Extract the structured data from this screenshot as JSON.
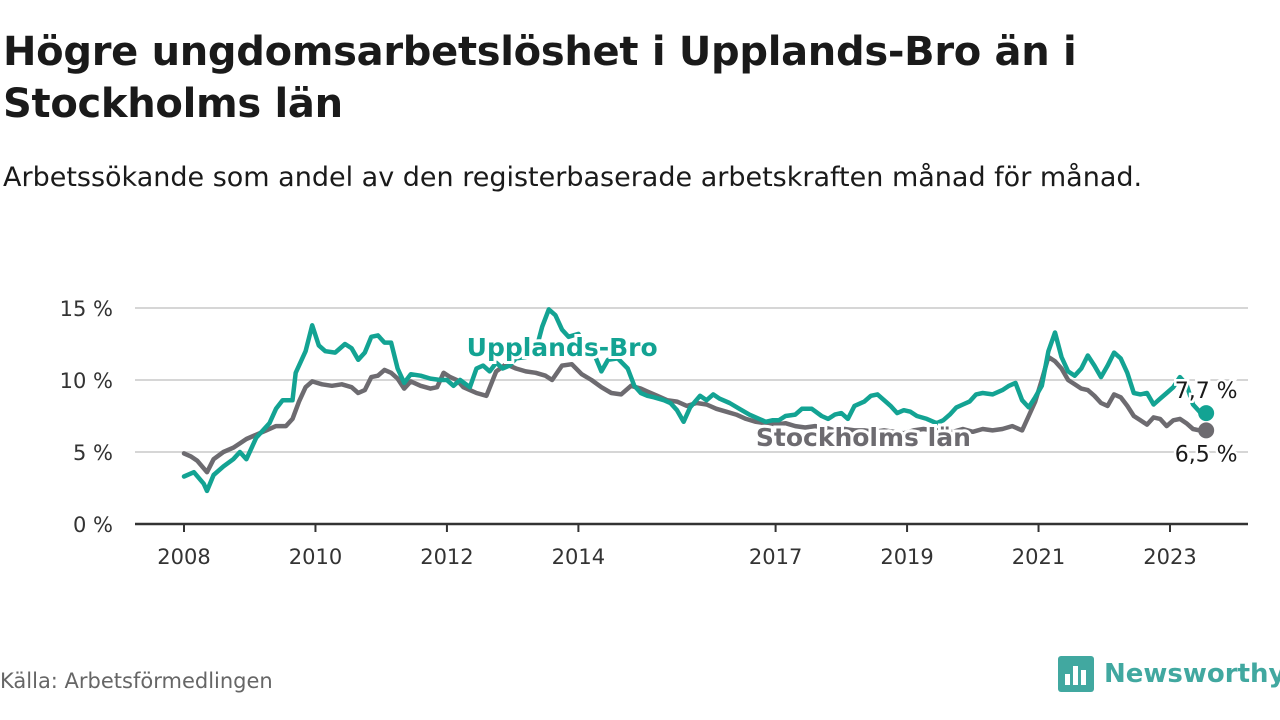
{
  "title": "Högre ungdomsarbetslöshet i Upplands-Bro än i Stockholms län",
  "subtitle": "Arbetssökande som andel av den registerbaserade arbetskraften månad för månad.",
  "source": "Källa: Arbetsförmedlingen",
  "brand": {
    "name": "Newsworthy",
    "icon": "bar-chart-logo-icon",
    "color": "#41a8a0"
  },
  "colors": {
    "upplands": "#13a393",
    "stockholm": "#6d6b70",
    "grid": "#d6d6d6",
    "axis": "#333333"
  },
  "chart_data": {
    "type": "line",
    "ylim": [
      0,
      15
    ],
    "yticks": [
      0,
      5,
      10,
      15
    ],
    "ytick_labels": [
      "0 %",
      "5 %",
      "10 %",
      "15 %"
    ],
    "xlim": [
      2008.0,
      2023.6
    ],
    "xticks": [
      2008,
      2010,
      2012,
      2014,
      2017,
      2019,
      2021,
      2023
    ],
    "xtick_labels": [
      "2008",
      "2010",
      "2012",
      "2014",
      "2017",
      "2019",
      "2021",
      "2023"
    ],
    "series": [
      {
        "name": "Upplands-Bro",
        "label": "Upplands-Bro",
        "end_label": "7,7 %",
        "points": [
          [
            2008.0,
            3.3
          ],
          [
            2008.15,
            3.6
          ],
          [
            2008.3,
            2.8
          ],
          [
            2008.35,
            2.3
          ],
          [
            2008.45,
            3.4
          ],
          [
            2008.6,
            4.0
          ],
          [
            2008.75,
            4.5
          ],
          [
            2008.85,
            5.0
          ],
          [
            2008.95,
            4.5
          ],
          [
            2009.1,
            6.0
          ],
          [
            2009.3,
            7.0
          ],
          [
            2009.4,
            8.0
          ],
          [
            2009.5,
            8.6
          ],
          [
            2009.65,
            8.6
          ],
          [
            2009.7,
            10.5
          ],
          [
            2009.85,
            12.0
          ],
          [
            2009.95,
            13.8
          ],
          [
            2010.05,
            12.4
          ],
          [
            2010.15,
            12.0
          ],
          [
            2010.3,
            11.9
          ],
          [
            2010.45,
            12.5
          ],
          [
            2010.55,
            12.2
          ],
          [
            2010.65,
            11.4
          ],
          [
            2010.75,
            11.9
          ],
          [
            2010.85,
            13.0
          ],
          [
            2010.95,
            13.1
          ],
          [
            2011.05,
            12.6
          ],
          [
            2011.15,
            12.6
          ],
          [
            2011.25,
            10.8
          ],
          [
            2011.35,
            9.8
          ],
          [
            2011.45,
            10.4
          ],
          [
            2011.6,
            10.3
          ],
          [
            2011.75,
            10.1
          ],
          [
            2011.9,
            10.0
          ],
          [
            2012.0,
            10.0
          ],
          [
            2012.1,
            9.6
          ],
          [
            2012.2,
            10.0
          ],
          [
            2012.35,
            9.5
          ],
          [
            2012.45,
            10.8
          ],
          [
            2012.55,
            11.0
          ],
          [
            2012.65,
            10.6
          ],
          [
            2012.75,
            11.2
          ],
          [
            2012.85,
            10.8
          ],
          [
            2012.95,
            11.0
          ],
          [
            2013.05,
            11.5
          ],
          [
            2013.2,
            11.6
          ],
          [
            2013.35,
            12.0
          ],
          [
            2013.45,
            13.7
          ],
          [
            2013.55,
            14.9
          ],
          [
            2013.65,
            14.5
          ],
          [
            2013.75,
            13.5
          ],
          [
            2013.85,
            13.0
          ],
          [
            2014.0,
            13.2
          ],
          [
            2014.15,
            12.0
          ],
          [
            2014.25,
            11.7
          ],
          [
            2014.35,
            10.6
          ],
          [
            2014.45,
            11.4
          ],
          [
            2014.6,
            11.5
          ],
          [
            2014.75,
            10.8
          ],
          [
            2014.85,
            9.6
          ],
          [
            2014.95,
            9.1
          ],
          [
            2015.05,
            8.9
          ],
          [
            2015.15,
            8.8
          ],
          [
            2015.3,
            8.6
          ],
          [
            2015.4,
            8.4
          ],
          [
            2015.5,
            7.9
          ],
          [
            2015.6,
            7.1
          ],
          [
            2015.7,
            8.1
          ],
          [
            2015.85,
            8.9
          ],
          [
            2015.95,
            8.6
          ],
          [
            2016.05,
            9.0
          ],
          [
            2016.15,
            8.7
          ],
          [
            2016.3,
            8.4
          ],
          [
            2016.45,
            8.0
          ],
          [
            2016.6,
            7.6
          ],
          [
            2016.75,
            7.3
          ],
          [
            2016.85,
            7.1
          ],
          [
            2016.95,
            7.2
          ],
          [
            2017.05,
            7.2
          ],
          [
            2017.15,
            7.5
          ],
          [
            2017.3,
            7.6
          ],
          [
            2017.4,
            8.0
          ],
          [
            2017.55,
            8.0
          ],
          [
            2017.7,
            7.5
          ],
          [
            2017.8,
            7.3
          ],
          [
            2017.9,
            7.6
          ],
          [
            2018.0,
            7.7
          ],
          [
            2018.1,
            7.3
          ],
          [
            2018.2,
            8.2
          ],
          [
            2018.35,
            8.5
          ],
          [
            2018.45,
            8.9
          ],
          [
            2018.55,
            9.0
          ],
          [
            2018.65,
            8.6
          ],
          [
            2018.75,
            8.2
          ],
          [
            2018.85,
            7.7
          ],
          [
            2018.95,
            7.9
          ],
          [
            2019.05,
            7.8
          ],
          [
            2019.15,
            7.5
          ],
          [
            2019.3,
            7.3
          ],
          [
            2019.45,
            7.0
          ],
          [
            2019.55,
            7.2
          ],
          [
            2019.65,
            7.6
          ],
          [
            2019.75,
            8.1
          ],
          [
            2019.85,
            8.3
          ],
          [
            2019.95,
            8.5
          ],
          [
            2020.05,
            9.0
          ],
          [
            2020.15,
            9.1
          ],
          [
            2020.3,
            9.0
          ],
          [
            2020.45,
            9.3
          ],
          [
            2020.55,
            9.6
          ],
          [
            2020.65,
            9.8
          ],
          [
            2020.75,
            8.6
          ],
          [
            2020.85,
            8.1
          ],
          [
            2020.95,
            8.8
          ],
          [
            2021.05,
            9.6
          ],
          [
            2021.15,
            12.0
          ],
          [
            2021.25,
            13.3
          ],
          [
            2021.35,
            11.6
          ],
          [
            2021.45,
            10.6
          ],
          [
            2021.55,
            10.3
          ],
          [
            2021.65,
            10.8
          ],
          [
            2021.75,
            11.7
          ],
          [
            2021.85,
            11.0
          ],
          [
            2021.95,
            10.2
          ],
          [
            2022.05,
            11.0
          ],
          [
            2022.15,
            11.9
          ],
          [
            2022.25,
            11.5
          ],
          [
            2022.35,
            10.5
          ],
          [
            2022.45,
            9.1
          ],
          [
            2022.55,
            9.0
          ],
          [
            2022.65,
            9.1
          ],
          [
            2022.75,
            8.3
          ],
          [
            2022.85,
            8.7
          ],
          [
            2022.95,
            9.1
          ],
          [
            2023.05,
            9.5
          ],
          [
            2023.15,
            10.2
          ],
          [
            2023.25,
            9.7
          ],
          [
            2023.35,
            8.3
          ],
          [
            2023.45,
            7.8
          ],
          [
            2023.5,
            7.5
          ],
          [
            2023.55,
            7.7
          ]
        ]
      },
      {
        "name": "Stockholms län",
        "label": "Stockholms län",
        "end_label": "6,5 %",
        "points": [
          [
            2008.0,
            4.9
          ],
          [
            2008.1,
            4.7
          ],
          [
            2008.2,
            4.4
          ],
          [
            2008.35,
            3.6
          ],
          [
            2008.45,
            4.5
          ],
          [
            2008.6,
            5.0
          ],
          [
            2008.75,
            5.3
          ],
          [
            2008.85,
            5.6
          ],
          [
            2008.95,
            5.9
          ],
          [
            2009.1,
            6.2
          ],
          [
            2009.25,
            6.5
          ],
          [
            2009.4,
            6.8
          ],
          [
            2009.55,
            6.8
          ],
          [
            2009.65,
            7.3
          ],
          [
            2009.75,
            8.5
          ],
          [
            2009.85,
            9.5
          ],
          [
            2009.95,
            9.9
          ],
          [
            2010.1,
            9.7
          ],
          [
            2010.25,
            9.6
          ],
          [
            2010.4,
            9.7
          ],
          [
            2010.55,
            9.5
          ],
          [
            2010.65,
            9.1
          ],
          [
            2010.75,
            9.3
          ],
          [
            2010.85,
            10.2
          ],
          [
            2010.95,
            10.3
          ],
          [
            2011.05,
            10.7
          ],
          [
            2011.15,
            10.5
          ],
          [
            2011.25,
            10.1
          ],
          [
            2011.35,
            9.4
          ],
          [
            2011.45,
            9.9
          ],
          [
            2011.6,
            9.6
          ],
          [
            2011.75,
            9.4
          ],
          [
            2011.85,
            9.5
          ],
          [
            2011.95,
            10.5
          ],
          [
            2012.05,
            10.2
          ],
          [
            2012.15,
            10.0
          ],
          [
            2012.25,
            9.5
          ],
          [
            2012.35,
            9.3
          ],
          [
            2012.45,
            9.1
          ],
          [
            2012.6,
            8.9
          ],
          [
            2012.75,
            10.6
          ],
          [
            2012.9,
            11.1
          ],
          [
            2013.05,
            10.8
          ],
          [
            2013.2,
            10.6
          ],
          [
            2013.35,
            10.5
          ],
          [
            2013.5,
            10.3
          ],
          [
            2013.6,
            10.0
          ],
          [
            2013.75,
            11.0
          ],
          [
            2013.9,
            11.1
          ],
          [
            2014.05,
            10.4
          ],
          [
            2014.2,
            10.0
          ],
          [
            2014.35,
            9.5
          ],
          [
            2014.5,
            9.1
          ],
          [
            2014.65,
            9.0
          ],
          [
            2014.8,
            9.6
          ],
          [
            2014.95,
            9.4
          ],
          [
            2015.05,
            9.2
          ],
          [
            2015.2,
            8.9
          ],
          [
            2015.35,
            8.6
          ],
          [
            2015.5,
            8.5
          ],
          [
            2015.65,
            8.2
          ],
          [
            2015.8,
            8.4
          ],
          [
            2015.95,
            8.3
          ],
          [
            2016.1,
            8.0
          ],
          [
            2016.25,
            7.8
          ],
          [
            2016.4,
            7.6
          ],
          [
            2016.55,
            7.3
          ],
          [
            2016.7,
            7.1
          ],
          [
            2016.85,
            7.0
          ],
          [
            2017.0,
            6.9
          ],
          [
            2017.15,
            7.0
          ],
          [
            2017.3,
            6.8
          ],
          [
            2017.45,
            6.7
          ],
          [
            2017.6,
            6.8
          ],
          [
            2017.75,
            6.7
          ],
          [
            2017.9,
            6.5
          ],
          [
            2018.05,
            6.6
          ],
          [
            2018.2,
            6.5
          ],
          [
            2018.35,
            6.5
          ],
          [
            2018.5,
            6.4
          ],
          [
            2018.65,
            6.5
          ],
          [
            2018.8,
            6.4
          ],
          [
            2018.95,
            6.3
          ],
          [
            2019.1,
            6.5
          ],
          [
            2019.25,
            6.6
          ],
          [
            2019.4,
            6.5
          ],
          [
            2019.55,
            6.5
          ],
          [
            2019.7,
            6.4
          ],
          [
            2019.85,
            6.6
          ],
          [
            2020.0,
            6.4
          ],
          [
            2020.15,
            6.6
          ],
          [
            2020.3,
            6.5
          ],
          [
            2020.45,
            6.6
          ],
          [
            2020.6,
            6.8
          ],
          [
            2020.75,
            6.5
          ],
          [
            2020.85,
            7.5
          ],
          [
            2020.95,
            8.5
          ],
          [
            2021.05,
            10.0
          ],
          [
            2021.15,
            11.6
          ],
          [
            2021.25,
            11.3
          ],
          [
            2021.35,
            10.8
          ],
          [
            2021.45,
            10.0
          ],
          [
            2021.55,
            9.7
          ],
          [
            2021.65,
            9.4
          ],
          [
            2021.75,
            9.3
          ],
          [
            2021.85,
            8.9
          ],
          [
            2021.95,
            8.4
          ],
          [
            2022.05,
            8.2
          ],
          [
            2022.15,
            9.0
          ],
          [
            2022.25,
            8.8
          ],
          [
            2022.35,
            8.2
          ],
          [
            2022.45,
            7.5
          ],
          [
            2022.55,
            7.2
          ],
          [
            2022.65,
            6.9
          ],
          [
            2022.75,
            7.4
          ],
          [
            2022.85,
            7.3
          ],
          [
            2022.95,
            6.8
          ],
          [
            2023.05,
            7.2
          ],
          [
            2023.15,
            7.3
          ],
          [
            2023.25,
            7.0
          ],
          [
            2023.35,
            6.6
          ],
          [
            2023.45,
            6.5
          ],
          [
            2023.55,
            6.5
          ]
        ]
      }
    ]
  }
}
